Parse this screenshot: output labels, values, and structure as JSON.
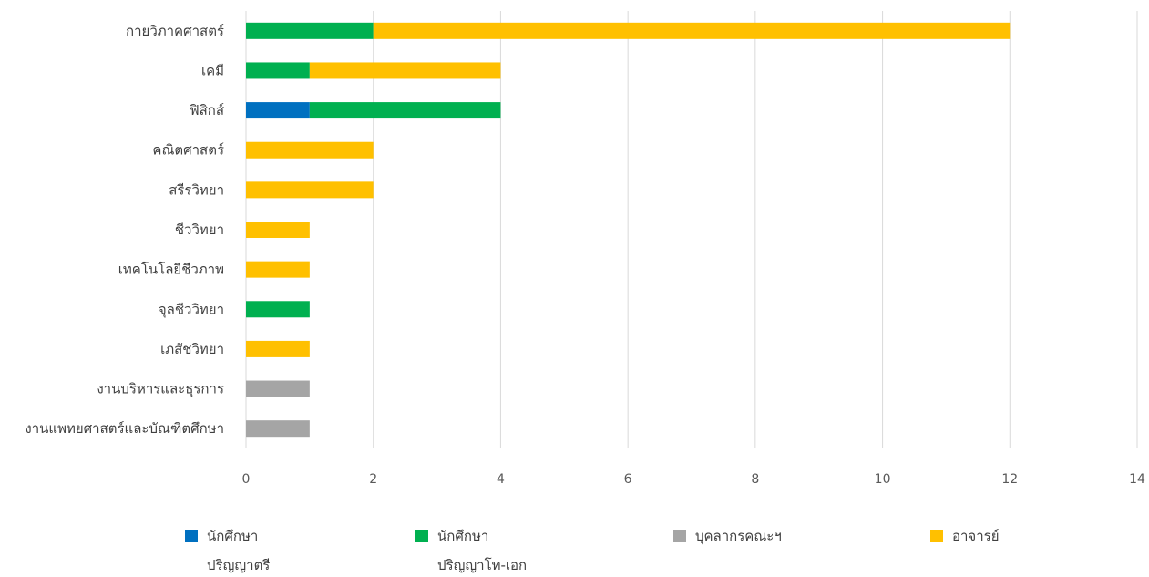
{
  "chart_data": {
    "type": "bar",
    "orientation": "horizontal",
    "stacked": true,
    "categories": [
      "กายวิภาคศาสตร์",
      "เคมี",
      "ฟิสิกส์",
      "คณิตศาสตร์",
      "สรีรวิทยา",
      "ชีววิทยา",
      "เทคโนโลยีชีวภาพ",
      "จุลชีววิทยา",
      "เภสัชวิทยา",
      "งานบริหารและธุรการ",
      "งานแพทยศาสตร์และบัณฑิตศึกษา"
    ],
    "series": [
      {
        "name": "นักศึกษา ปริญญาตรี",
        "line1": "นักศึกษา",
        "line2": "ปริญญาตรี",
        "color": "#0070C0",
        "values": [
          0,
          0,
          1,
          0,
          0,
          0,
          0,
          0,
          0,
          0,
          0
        ]
      },
      {
        "name": "นักศึกษา ปริญญาโท-เอก",
        "line1": "นักศึกษา",
        "line2": "ปริญญาโท-เอก",
        "color": "#00B050",
        "values": [
          2,
          1,
          3,
          0,
          0,
          0,
          0,
          1,
          0,
          0,
          0
        ]
      },
      {
        "name": "บุคลากรคณะฯ",
        "line1": "บุคลากรคณะฯ",
        "line2": "",
        "color": "#A5A5A5",
        "values": [
          0,
          0,
          0,
          0,
          0,
          0,
          0,
          0,
          0,
          1,
          1
        ]
      },
      {
        "name": "อาจารย์",
        "line1": "อาจารย์",
        "line2": "",
        "color": "#FFC000",
        "values": [
          10,
          3,
          0,
          2,
          2,
          1,
          1,
          0,
          1,
          0,
          0
        ]
      }
    ],
    "xlim": [
      0,
      14
    ],
    "ticks": [
      "0",
      "2",
      "4",
      "6",
      "8",
      "10",
      "12",
      "14"
    ],
    "grid": true,
    "legend_position": "bottom"
  }
}
